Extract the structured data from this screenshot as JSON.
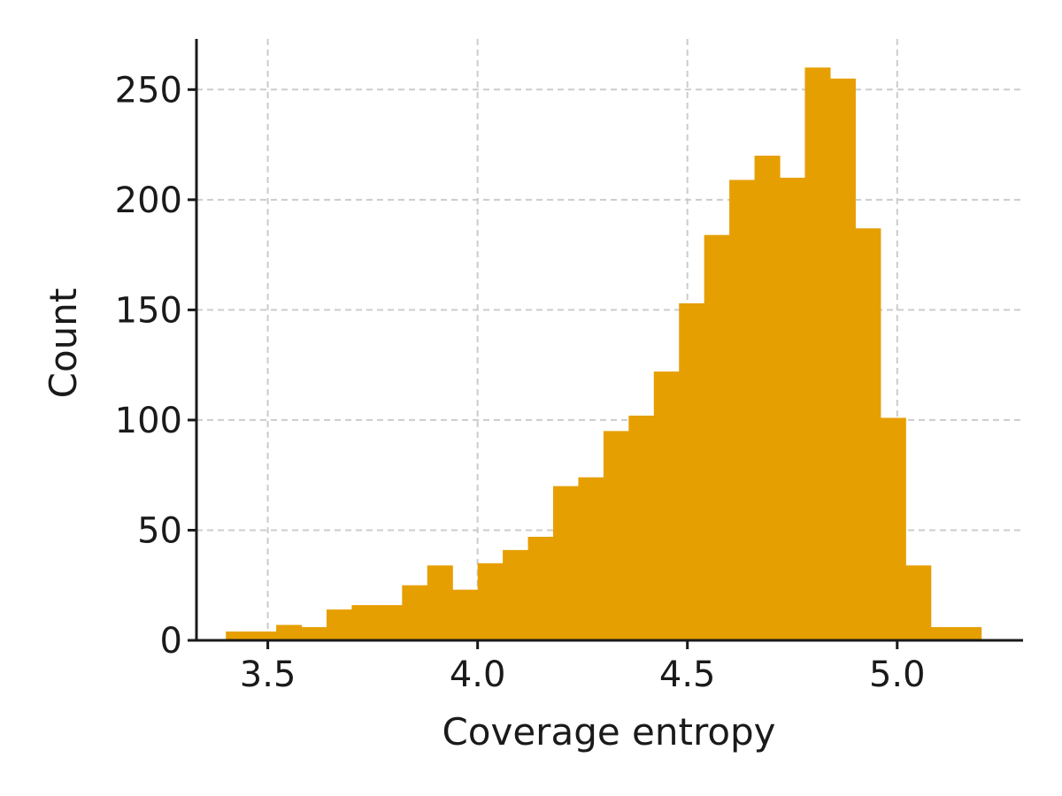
{
  "chart_data": {
    "type": "bar",
    "subtype": "histogram",
    "title": "",
    "xlabel": "Coverage entropy",
    "ylabel": "Count",
    "xlim": [
      3.33,
      5.3
    ],
    "ylim": [
      0,
      273
    ],
    "xticks": [
      3.5,
      4.0,
      4.5,
      5.0
    ],
    "xtick_labels": [
      "3.5",
      "4.0",
      "4.5",
      "5.0"
    ],
    "yticks": [
      0,
      50,
      100,
      150,
      200,
      250
    ],
    "ytick_labels": [
      "0",
      "50",
      "100",
      "150",
      "200",
      "250"
    ],
    "grid": true,
    "bar_color": "#E69F00",
    "bin_width": 0.06,
    "bins": [
      {
        "x0": 3.4,
        "x1": 3.46,
        "value": 4
      },
      {
        "x0": 3.46,
        "x1": 3.52,
        "value": 4
      },
      {
        "x0": 3.52,
        "x1": 3.58,
        "value": 7
      },
      {
        "x0": 3.58,
        "x1": 3.64,
        "value": 6
      },
      {
        "x0": 3.64,
        "x1": 3.7,
        "value": 14
      },
      {
        "x0": 3.7,
        "x1": 3.76,
        "value": 16
      },
      {
        "x0": 3.76,
        "x1": 3.82,
        "value": 16
      },
      {
        "x0": 3.82,
        "x1": 3.88,
        "value": 25
      },
      {
        "x0": 3.88,
        "x1": 3.94,
        "value": 34
      },
      {
        "x0": 3.94,
        "x1": 4.0,
        "value": 23
      },
      {
        "x0": 4.0,
        "x1": 4.06,
        "value": 35
      },
      {
        "x0": 4.06,
        "x1": 4.12,
        "value": 41
      },
      {
        "x0": 4.12,
        "x1": 4.18,
        "value": 47
      },
      {
        "x0": 4.18,
        "x1": 4.24,
        "value": 70
      },
      {
        "x0": 4.24,
        "x1": 4.3,
        "value": 74
      },
      {
        "x0": 4.3,
        "x1": 4.36,
        "value": 95
      },
      {
        "x0": 4.36,
        "x1": 4.42,
        "value": 102
      },
      {
        "x0": 4.42,
        "x1": 4.48,
        "value": 122
      },
      {
        "x0": 4.48,
        "x1": 4.54,
        "value": 153
      },
      {
        "x0": 4.54,
        "x1": 4.6,
        "value": 184
      },
      {
        "x0": 4.6,
        "x1": 4.66,
        "value": 209
      },
      {
        "x0": 4.66,
        "x1": 4.72,
        "value": 220
      },
      {
        "x0": 4.72,
        "x1": 4.78,
        "value": 210
      },
      {
        "x0": 4.78,
        "x1": 4.84,
        "value": 260
      },
      {
        "x0": 4.84,
        "x1": 4.9,
        "value": 255
      },
      {
        "x0": 4.9,
        "x1": 4.96,
        "value": 187
      },
      {
        "x0": 4.96,
        "x1": 5.02,
        "value": 101
      },
      {
        "x0": 5.02,
        "x1": 5.08,
        "value": 34
      },
      {
        "x0": 5.08,
        "x1": 5.14,
        "value": 6
      },
      {
        "x0": 5.14,
        "x1": 5.2,
        "value": 6
      }
    ]
  }
}
